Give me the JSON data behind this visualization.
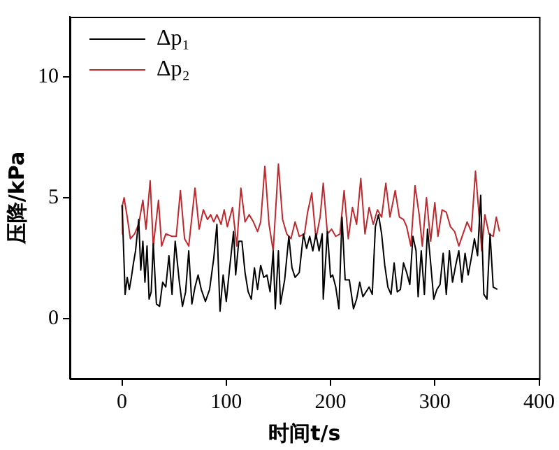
{
  "chart_data": {
    "type": "line",
    "xlabel": "时间t/s",
    "ylabel": "压降/kPa",
    "xlim": [
      -50,
      400
    ],
    "xticks": [
      0,
      100,
      200,
      300,
      400
    ],
    "ylim": [
      -2.5,
      12.5
    ],
    "yticks": [
      0,
      5,
      10
    ],
    "grid": false,
    "legend": "top left",
    "marker": "none",
    "line_style": "solid",
    "series": [
      {
        "name": "Δp₁",
        "color": "#000000",
        "x": [
          0,
          1,
          3,
          5,
          7,
          9,
          11,
          13,
          16,
          18,
          20,
          22,
          24,
          26,
          28,
          30,
          33,
          36,
          39,
          42,
          45,
          48,
          51,
          55,
          58,
          61,
          64,
          67,
          70,
          73,
          76,
          80,
          84,
          88,
          91,
          94,
          97,
          100,
          103,
          107,
          109,
          112,
          115,
          118,
          121,
          124,
          127,
          130,
          133,
          136,
          139,
          142,
          145,
          147,
          150,
          152,
          156,
          160,
          163,
          166,
          170,
          174,
          177,
          180,
          183,
          186,
          189,
          192,
          193,
          197,
          200,
          202,
          205,
          208,
          211,
          214,
          218,
          222,
          225,
          228,
          231,
          234,
          237,
          240,
          243,
          246,
          249,
          252,
          255,
          258,
          261,
          264,
          267,
          270,
          273,
          276,
          279,
          282,
          284,
          287,
          290,
          293,
          296,
          299,
          302,
          305,
          308,
          311,
          314,
          317,
          320,
          323,
          326,
          329,
          332,
          335,
          338,
          341,
          344,
          347,
          350,
          353,
          356,
          360
        ],
        "values": [
          4.7,
          3.5,
          1.0,
          1.7,
          1.2,
          1.7,
          2.3,
          2.8,
          4.1,
          2.0,
          3.2,
          1.5,
          3.0,
          0.8,
          1.1,
          3.1,
          0.6,
          0.5,
          1.5,
          1.3,
          2.6,
          1.0,
          3.2,
          1.5,
          0.5,
          1.1,
          2.8,
          0.6,
          1.3,
          1.8,
          1.2,
          0.7,
          1.2,
          2.5,
          3.9,
          0.3,
          1.8,
          0.7,
          2.0,
          3.6,
          1.8,
          3.2,
          3.2,
          1.9,
          1.1,
          0.8,
          2.1,
          1.2,
          2.2,
          1.7,
          1.8,
          1.1,
          2.8,
          0.4,
          2.8,
          0.6,
          1.6,
          3.4,
          2.1,
          1.7,
          1.9,
          3.5,
          2.9,
          3.4,
          2.8,
          3.5,
          2.8,
          3.5,
          0.8,
          3.6,
          1.7,
          1.8,
          1.3,
          0.4,
          4.2,
          1.6,
          1.6,
          0.4,
          0.8,
          1.5,
          0.9,
          1.1,
          1.3,
          1.0,
          3.8,
          4.3,
          3.5,
          2.2,
          1.3,
          1.0,
          2.3,
          1.1,
          1.2,
          2.3,
          1.9,
          1.4,
          3.4,
          2.8,
          0.9,
          2.8,
          1.0,
          3.7,
          2.3,
          0.8,
          1.2,
          1.4,
          2.7,
          1.0,
          2.8,
          1.5,
          2.2,
          2.8,
          1.5,
          2.7,
          1.8,
          2.5,
          3.3,
          2.6,
          5.1,
          1.0,
          0.8,
          3.5,
          1.3,
          1.2
        ]
      },
      {
        "name": "Δp₂",
        "color": "#c0282d",
        "x": [
          0,
          0.5,
          2,
          5,
          8,
          12,
          16,
          20,
          23,
          27,
          30,
          35,
          38,
          42,
          48,
          52,
          56,
          60,
          64,
          70,
          74,
          78,
          82,
          85,
          88,
          91,
          95,
          98,
          101,
          106,
          110,
          114,
          118,
          122,
          126,
          130,
          133,
          137,
          141,
          145,
          150,
          154,
          158,
          162,
          166,
          170,
          175,
          178,
          182,
          186,
          190,
          193,
          197,
          201,
          205,
          209,
          213,
          217,
          221,
          225,
          229,
          233,
          237,
          241,
          245,
          249,
          253,
          257,
          262,
          266,
          270,
          273,
          277,
          281,
          285,
          288,
          292,
          296,
          300,
          303,
          307,
          311,
          315,
          319,
          323,
          327,
          331,
          335,
          339,
          343,
          345,
          348,
          352,
          356,
          359,
          362
        ],
        "values": [
          3.5,
          4.7,
          5.0,
          4.2,
          3.3,
          3.5,
          3.9,
          4.9,
          3.7,
          5.7,
          3.0,
          4.9,
          3.0,
          3.5,
          3.4,
          3.4,
          5.3,
          3.3,
          3.0,
          5.4,
          3.7,
          4.5,
          4.1,
          4.3,
          4.0,
          4.3,
          3.9,
          4.5,
          3.8,
          4.6,
          3.0,
          5.4,
          4.0,
          4.3,
          4.0,
          3.6,
          4.0,
          6.3,
          3.9,
          2.8,
          6.4,
          4.1,
          3.5,
          3.3,
          4.0,
          3.4,
          3.5,
          4.4,
          5.2,
          3.3,
          4.2,
          5.6,
          3.5,
          3.7,
          3.4,
          3.5,
          5.3,
          3.3,
          4.6,
          3.9,
          5.8,
          3.5,
          4.6,
          3.9,
          4.5,
          4.2,
          5.6,
          4.2,
          5.3,
          4.2,
          4.1,
          3.8,
          3.0,
          5.5,
          4.3,
          3.0,
          5.0,
          3.2,
          4.8,
          3.4,
          4.5,
          4.4,
          3.8,
          3.6,
          3.0,
          3.5,
          4.0,
          3.6,
          6.1,
          4.0,
          2.8,
          4.3,
          3.5,
          3.4,
          4.2,
          3.6
        ]
      }
    ]
  }
}
